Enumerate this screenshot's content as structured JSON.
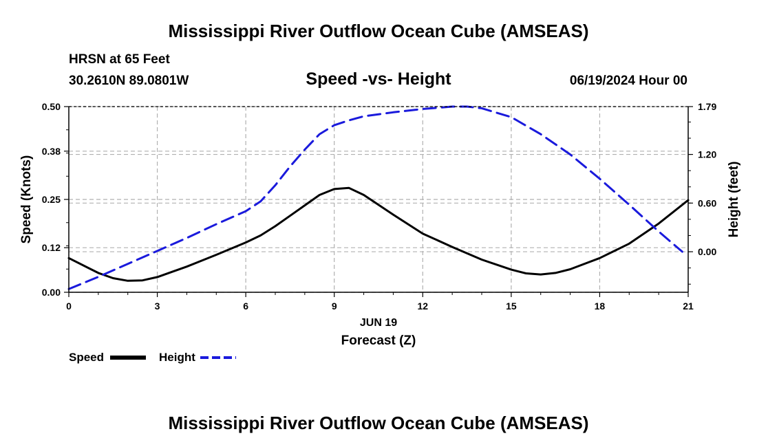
{
  "header": {
    "title": "Mississippi River Outflow Ocean Cube (AMSEAS)",
    "station": "HRSN at 65 Feet",
    "coords": "30.2610N  89.0801W",
    "subtitle": "Speed -vs- Height",
    "datetime": "06/19/2024 Hour 00"
  },
  "footer": {
    "title": "Mississippi River Outflow Ocean Cube (AMSEAS)"
  },
  "legend": {
    "items": [
      {
        "label": "Speed",
        "color": "#000000"
      },
      {
        "label": "Height",
        "color": "#1a1adc"
      }
    ]
  },
  "chart_data": {
    "type": "line",
    "title": "Speed -vs- Height",
    "xlabel": "Forecast (Z)",
    "xlabel_date": "JUN 19",
    "ylabel": "Speed (Knots)",
    "y2label": "Height (feet)",
    "xlim": [
      0,
      21
    ],
    "ylim": [
      0,
      0.5
    ],
    "y2lim": [
      -0.5,
      1.79
    ],
    "x_ticks": [
      0,
      3,
      6,
      9,
      12,
      15,
      18,
      21
    ],
    "y_ticks": [
      0.0,
      0.12,
      0.25,
      0.38,
      0.5
    ],
    "y_tick_labels": [
      "0.00",
      "0.12",
      "0.25",
      "0.38",
      "0.50"
    ],
    "y2_ticks": [
      0.0,
      0.6,
      1.2,
      1.79
    ],
    "y2_tick_labels": [
      "0.00",
      "0.60",
      "1.20",
      "1.79"
    ],
    "grid": true,
    "series": [
      {
        "name": "Speed",
        "axis": "left",
        "color": "#000000",
        "dash": "solid",
        "x": [
          0,
          1,
          1.5,
          2,
          2.5,
          3,
          4,
          5,
          6,
          6.5,
          7,
          7.5,
          8,
          8.5,
          9,
          9.5,
          10,
          11,
          12,
          13,
          14,
          15,
          15.5,
          16,
          16.5,
          17,
          18,
          19,
          20,
          21
        ],
        "values": [
          0.092,
          0.052,
          0.038,
          0.031,
          0.032,
          0.041,
          0.069,
          0.101,
          0.134,
          0.153,
          0.178,
          0.206,
          0.234,
          0.262,
          0.278,
          0.281,
          0.262,
          0.209,
          0.158,
          0.122,
          0.088,
          0.061,
          0.051,
          0.048,
          0.052,
          0.062,
          0.092,
          0.131,
          0.185,
          0.248
        ]
      },
      {
        "name": "Height",
        "axis": "right",
        "color": "#1a1adc",
        "dash": "dashed",
        "x": [
          0,
          1,
          2,
          3,
          4,
          5,
          6,
          6.5,
          7,
          7.5,
          8,
          8.5,
          9,
          9.5,
          10,
          11,
          12,
          13,
          13.5,
          14,
          15,
          16,
          17,
          18,
          19,
          20,
          20.8
        ],
        "values": [
          -0.46,
          -0.31,
          -0.15,
          0.01,
          0.17,
          0.34,
          0.5,
          0.62,
          0.82,
          1.05,
          1.26,
          1.45,
          1.56,
          1.62,
          1.67,
          1.72,
          1.76,
          1.79,
          1.79,
          1.77,
          1.66,
          1.45,
          1.2,
          0.9,
          0.58,
          0.25,
          0.0
        ]
      }
    ]
  }
}
